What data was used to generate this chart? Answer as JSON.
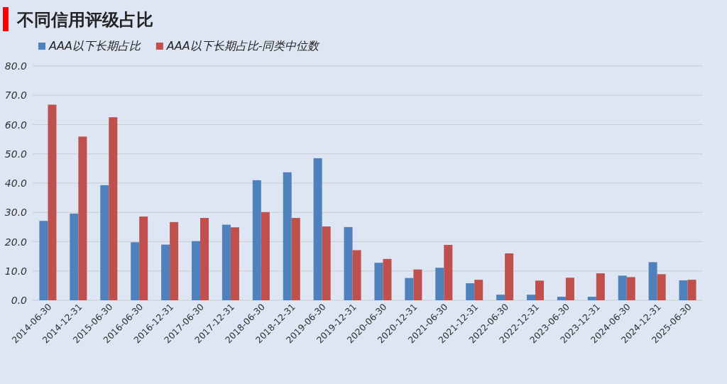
{
  "chart_data": {
    "type": "bar",
    "title": "不同信用评级占比",
    "categories": [
      "2014-06-30",
      "2014-12-31",
      "2015-06-30",
      "2016-06-30",
      "2016-12-31",
      "2017-06-30",
      "2017-12-31",
      "2018-06-30",
      "2018-12-31",
      "2019-06-30",
      "2019-12-31",
      "2020-06-30",
      "2020-12-31",
      "2021-06-30",
      "2021-12-31",
      "2022-06-30",
      "2022-12-31",
      "2023-06-30",
      "2023-12-31",
      "2024-06-30",
      "2024-12-31",
      "2025-06-30"
    ],
    "series": [
      {
        "name": "AAA以下长期占比",
        "color": "#4f81bd",
        "values": [
          27.1,
          29.6,
          39.3,
          19.8,
          19.0,
          20.2,
          25.8,
          41.0,
          43.7,
          48.5,
          25.0,
          12.8,
          7.6,
          11.1,
          5.8,
          1.9,
          1.9,
          1.2,
          1.2,
          8.4,
          13.0,
          6.8
        ]
      },
      {
        "name": "AAA以下长期占比-同类中位数",
        "color": "#c0504d",
        "values": [
          66.8,
          55.9,
          62.5,
          28.6,
          26.7,
          28.1,
          24.9,
          30.1,
          28.1,
          25.2,
          17.1,
          14.1,
          10.5,
          18.9,
          7.0,
          16.0,
          6.7,
          7.7,
          9.2,
          7.9,
          8.9,
          7.0
        ]
      }
    ],
    "ylim": [
      0,
      80
    ],
    "yticks": [
      {
        "value": 0,
        "label": "0.0"
      },
      {
        "value": 10,
        "label": "10.0"
      },
      {
        "value": 20,
        "label": "20.0"
      },
      {
        "value": 30,
        "label": "30.0"
      },
      {
        "value": 40,
        "label": "40.0"
      },
      {
        "value": 50,
        "label": "50.0"
      },
      {
        "value": 60,
        "label": "60.0"
      },
      {
        "value": 70,
        "label": "70.0"
      },
      {
        "value": 80,
        "label": "80.0"
      }
    ],
    "grid": "y",
    "legend": "top"
  }
}
